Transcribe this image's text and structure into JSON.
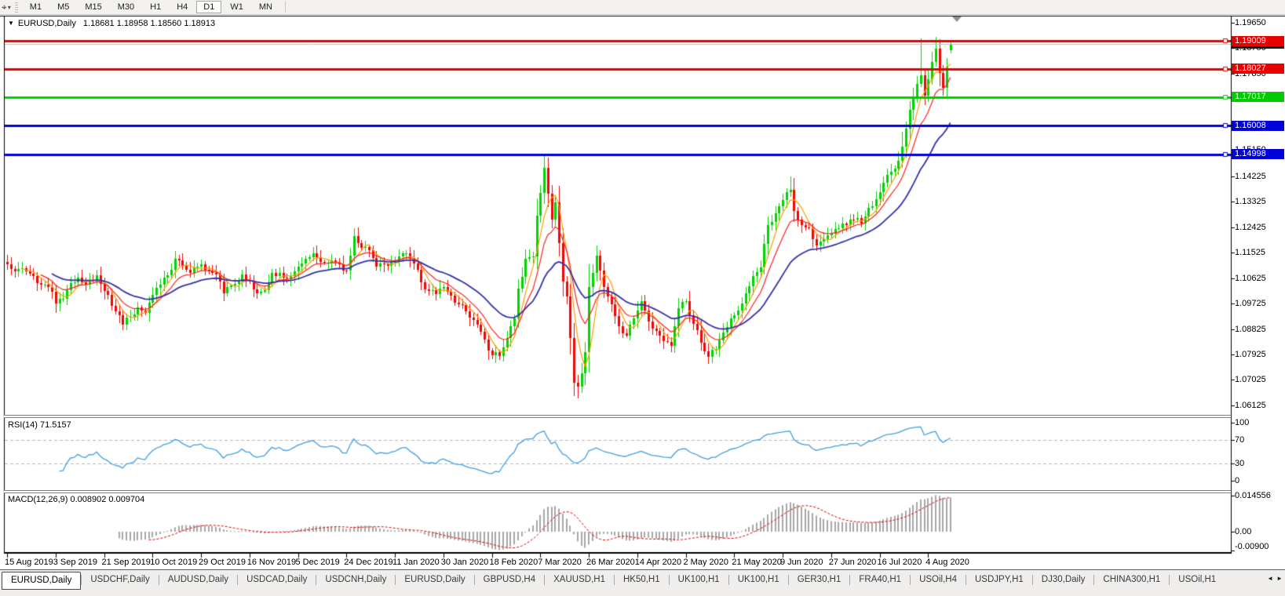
{
  "toolbar": {
    "tool_icon": "⌖",
    "dropdown_icon": "▾",
    "timeframes": [
      "M1",
      "M5",
      "M15",
      "M30",
      "H1",
      "H4",
      "D1",
      "W1",
      "MN"
    ],
    "active_timeframe": "D1"
  },
  "chart": {
    "title": {
      "collapse_icon": "▼",
      "symbol_period": "EURUSD,Daily",
      "ohlc": "1.18681 1.18958 1.18560 1.18913"
    },
    "rsi_label": "RSI(14) 71.5157",
    "macd_label": "MACD(12,26,9) 0.008902 0.009704"
  },
  "colors": {
    "bull": "#00d400",
    "bear": "#f00606",
    "ma_fast": "#ff9c00",
    "ma_mid": "#ff2020",
    "ma_slow": "#3333aa",
    "rsi_line": "#3f9fe0",
    "rsi_level": "#b8b8b8",
    "macd_hist": "#a8a8a8",
    "macd_signal": "#e60000",
    "current_line": "#c0c0c0",
    "axis_fg": "#000000"
  },
  "chart_data": {
    "type": "candlestick",
    "symbol": "EURUSD",
    "timeframe": "Daily",
    "last_candle_ohlc": {
      "open": 1.18681,
      "high": 1.18958,
      "low": 1.1856,
      "close": 1.18913
    },
    "current_price_label": {
      "text": "1.18913",
      "bg": "#000000"
    },
    "horizontal_lines": [
      {
        "text": "1.19009",
        "price": 1.19009,
        "bg": "#e60000"
      },
      {
        "text": "1.18027",
        "price": 1.18027,
        "bg": "#e60000"
      },
      {
        "text": "1.17017",
        "price": 1.17017,
        "bg": "#00cc00"
      },
      {
        "text": "1.16008",
        "price": 1.16008,
        "bg": "#0000d8"
      },
      {
        "text": "1.14998",
        "price": 1.14998,
        "bg": "#0000d8"
      }
    ],
    "price_axis_ticks": [
      "1.19650",
      "1.18750",
      "1.17850",
      "1.16950",
      "1.16050",
      "1.15150",
      "1.14225",
      "1.13325",
      "1.12425",
      "1.11525",
      "1.10625",
      "1.09725",
      "1.08825",
      "1.07925",
      "1.07025",
      "1.06125"
    ],
    "time_axis_labels": [
      "15 Aug 2019",
      "3 Sep 2019",
      "21 Sep 2019",
      "10 Oct 2019",
      "29 Oct 2019",
      "16 Nov 2019",
      "5 Dec 2019",
      "24 Dec 2019",
      "11 Jan 2020",
      "30 Jan 2020",
      "18 Feb 2020",
      "7 Mar 2020",
      "26 Mar 2020",
      "14 Apr 2020",
      "2 May 2020",
      "21 May 2020",
      "9 Jun 2020",
      "27 Jun 2020",
      "16 Jul 2020",
      "4 Aug 2020"
    ],
    "candles_per_label": 13,
    "num_candles": 254,
    "close_anchors": [
      [
        0,
        1.111
      ],
      [
        2,
        1.1085
      ],
      [
        4,
        1.1098
      ],
      [
        6,
        1.1078
      ],
      [
        9,
        1.104
      ],
      [
        11,
        1.103
      ],
      [
        13,
        1.0972
      ],
      [
        15,
        1.099
      ],
      [
        17,
        1.1045
      ],
      [
        19,
        1.1065
      ],
      [
        21,
        1.104
      ],
      [
        24,
        1.1072
      ],
      [
        26,
        1.1017
      ],
      [
        28,
        1.0965
      ],
      [
        31,
        1.0899
      ],
      [
        33,
        1.0925
      ],
      [
        35,
        1.0958
      ],
      [
        37,
        1.094
      ],
      [
        39,
        1.1004
      ],
      [
        41,
        1.104
      ],
      [
        43,
        1.1073
      ],
      [
        45,
        1.113
      ],
      [
        47,
        1.1105
      ],
      [
        49,
        1.108
      ],
      [
        52,
        1.1112
      ],
      [
        54,
        1.1085
      ],
      [
        56,
        1.1074
      ],
      [
        58,
        1.1009
      ],
      [
        60,
        1.1035
      ],
      [
        63,
        1.1075
      ],
      [
        65,
        1.1052
      ],
      [
        67,
        1.101
      ],
      [
        69,
        1.1019
      ],
      [
        71,
        1.108
      ],
      [
        73,
        1.1082
      ],
      [
        75,
        1.106
      ],
      [
        78,
        1.1104
      ],
      [
        80,
        1.113
      ],
      [
        82,
        1.115
      ],
      [
        84,
        1.112
      ],
      [
        86,
        1.1118
      ],
      [
        88,
        1.112
      ],
      [
        91,
        1.1088
      ],
      [
        93,
        1.1212
      ],
      [
        95,
        1.117
      ],
      [
        97,
        1.116
      ],
      [
        99,
        1.1103
      ],
      [
        101,
        1.111
      ],
      [
        104,
        1.1122
      ],
      [
        106,
        1.115
      ],
      [
        108,
        1.113
      ],
      [
        110,
        1.1093
      ],
      [
        112,
        1.1023
      ],
      [
        115,
        1.1005
      ],
      [
        117,
        1.1032
      ],
      [
        119,
        1.0999
      ],
      [
        121,
        1.097
      ],
      [
        123,
        1.0946
      ],
      [
        125,
        1.0915
      ],
      [
        127,
        1.0873
      ],
      [
        129,
        1.0805
      ],
      [
        132,
        1.0786
      ],
      [
        134,
        1.085
      ],
      [
        136,
        1.092
      ],
      [
        137,
        1.1026
      ],
      [
        139,
        1.113
      ],
      [
        141,
        1.114
      ],
      [
        142,
        1.1284
      ],
      [
        144,
        1.1452
      ],
      [
        145,
        1.136
      ],
      [
        146,
        1.127
      ],
      [
        147,
        1.133
      ],
      [
        148,
        1.1186
      ],
      [
        149,
        1.105
      ],
      [
        150,
        1.0998
      ],
      [
        151,
        1.085
      ],
      [
        152,
        1.0694
      ],
      [
        153,
        1.068
      ],
      [
        154,
        1.0727
      ],
      [
        155,
        1.08
      ],
      [
        156,
        1.103
      ],
      [
        157,
        1.108
      ],
      [
        158,
        1.1141
      ],
      [
        159,
        1.109
      ],
      [
        160,
        1.1031
      ],
      [
        162,
        1.097
      ],
      [
        164,
        1.0893
      ],
      [
        166,
        1.086
      ],
      [
        168,
        1.092
      ],
      [
        170,
        1.098
      ],
      [
        172,
        1.091
      ],
      [
        174,
        1.0875
      ],
      [
        176,
        1.084
      ],
      [
        178,
        1.0823
      ],
      [
        180,
        1.0955
      ],
      [
        182,
        1.098
      ],
      [
        184,
        1.09
      ],
      [
        186,
        1.0834
      ],
      [
        188,
        1.0785
      ],
      [
        190,
        1.081
      ],
      [
        192,
        1.087
      ],
      [
        194,
        1.092
      ],
      [
        196,
        1.0949
      ],
      [
        198,
        1.101
      ],
      [
        200,
        1.107
      ],
      [
        202,
        1.1101
      ],
      [
        204,
        1.125
      ],
      [
        206,
        1.1291
      ],
      [
        208,
        1.1339
      ],
      [
        210,
        1.1375
      ],
      [
        211,
        1.1301
      ],
      [
        213,
        1.125
      ],
      [
        215,
        1.124
      ],
      [
        217,
        1.1177
      ],
      [
        219,
        1.12
      ],
      [
        221,
        1.1219
      ],
      [
        223,
        1.1239
      ],
      [
        225,
        1.125
      ],
      [
        227,
        1.127
      ],
      [
        229,
        1.1256
      ],
      [
        231,
        1.131
      ],
      [
        233,
        1.134
      ],
      [
        235,
        1.14
      ],
      [
        236,
        1.1427
      ],
      [
        238,
        1.145
      ],
      [
        240,
        1.1526
      ],
      [
        242,
        1.1656
      ],
      [
        244,
        1.1749
      ],
      [
        245,
        1.1778
      ],
      [
        246,
        1.1707
      ],
      [
        247,
        1.1765
      ],
      [
        248,
        1.1827
      ],
      [
        249,
        1.1873
      ],
      [
        250,
        1.1787
      ],
      [
        251,
        1.1736
      ],
      [
        252,
        1.181
      ],
      [
        253,
        1.18913
      ]
    ],
    "extreme_wicks": [
      [
        31,
        "l",
        1.0879
      ],
      [
        58,
        "l",
        1.0981
      ],
      [
        93,
        "h",
        1.1239
      ],
      [
        132,
        "l",
        1.0778
      ],
      [
        144,
        "h",
        1.1495
      ],
      [
        152,
        "l",
        1.0652
      ],
      [
        153,
        "l",
        1.0636
      ],
      [
        210,
        "h",
        1.1422
      ],
      [
        240,
        "h",
        1.158
      ],
      [
        245,
        "h",
        1.1909
      ],
      [
        249,
        "h",
        1.1916
      ]
    ],
    "moving_averages": [
      {
        "name": "fast",
        "method": "sma",
        "period": 5
      },
      {
        "name": "medium",
        "method": "ema",
        "period": 10
      },
      {
        "name": "slow",
        "method": "ema",
        "period": 26
      }
    ],
    "indicators": [
      {
        "name": "RSI",
        "params": "14",
        "value": "71.5157",
        "levels": [
          70,
          30
        ],
        "scale_ticks": [
          "100",
          "70",
          "30",
          "0"
        ]
      },
      {
        "name": "MACD",
        "params": "12,26,9",
        "macd_value": "0.008902",
        "signal_value": "0.009704",
        "scale_ticks": [
          "0.014556",
          "0.00",
          "-0.00900"
        ]
      }
    ]
  },
  "tabs": {
    "items": [
      "EURUSD,Daily",
      "USDCHF,Daily",
      "AUDUSD,Daily",
      "USDCAD,Daily",
      "USDCNH,Daily",
      "EURUSD,Daily",
      "GBPUSD,H4",
      "XAUUSD,H1",
      "HK50,H1",
      "UK100,H1",
      "UK100,H1",
      "GER30,H1",
      "FRA40,H1",
      "USOil,H4",
      "USDJPY,H1",
      "DJ30,Daily",
      "CHINA300,H1",
      "USOil,H1"
    ],
    "active_index": 0,
    "scroll_left_icon": "◄",
    "scroll_right_icon": "►"
  }
}
